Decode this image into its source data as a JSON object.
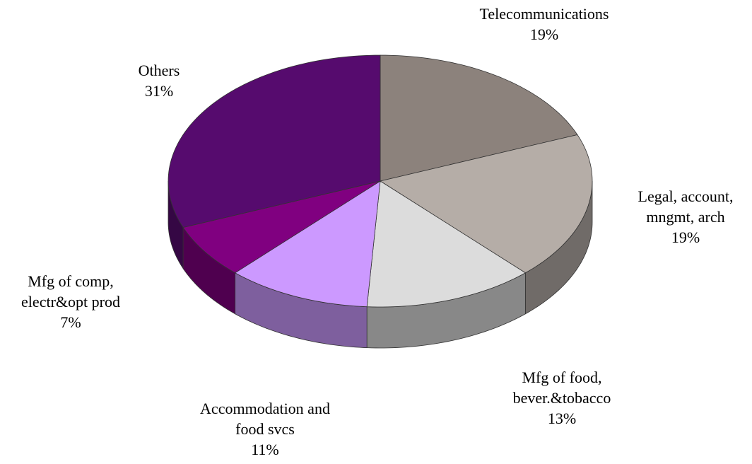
{
  "chart_data": {
    "type": "pie3d",
    "categories": [
      "Telecommunications",
      "Legal, account,\nmngmt, arch",
      "Mfg of food,\nbever.&tobacco",
      "Accommodation and\nfood svcs",
      "Mfg of comp,\nelectr&opt prod",
      "Others"
    ],
    "values": [
      19,
      19,
      13,
      11,
      7,
      31
    ],
    "value_labels": [
      "19%",
      "19%",
      "13%",
      "11%",
      "7%",
      "31%"
    ],
    "colors": [
      "#8c827c",
      "#b5ada7",
      "#dcdcdc",
      "#cc99ff",
      "#800080",
      "#560b6e"
    ]
  }
}
